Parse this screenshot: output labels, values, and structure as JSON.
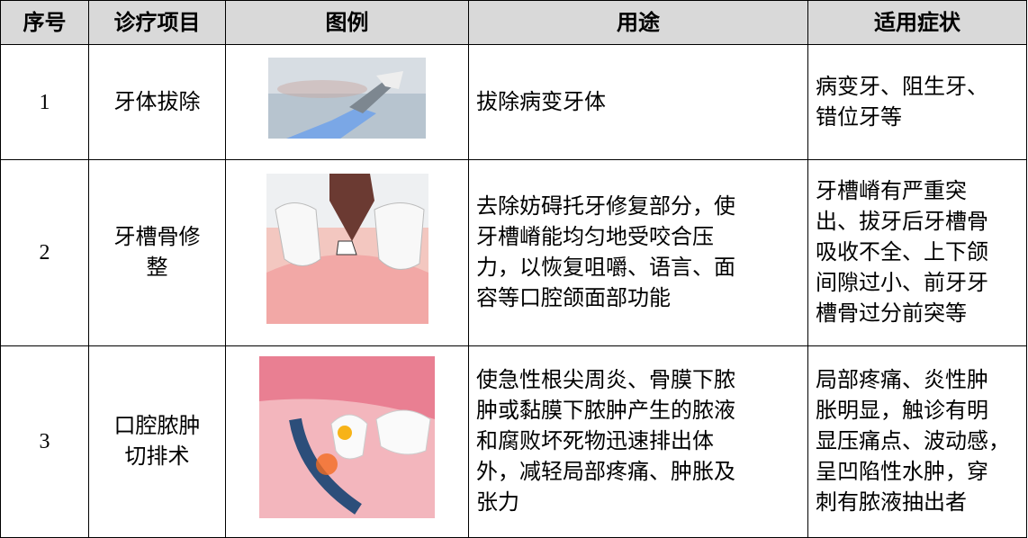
{
  "table": {
    "header": [
      "序号",
      "诊疗项目",
      "图例",
      "用途",
      "适用症状"
    ],
    "rows": [
      {
        "no": "1",
        "item": [
          "牙体拔除"
        ],
        "use": [
          "拔除病变牙体"
        ],
        "symptoms": [
          "病变牙、阻生牙、",
          "错位牙等"
        ]
      },
      {
        "no": "2",
        "item": [
          "牙槽骨修",
          "整"
        ],
        "use": [
          "去除妨碍托牙修复部分，使",
          "牙槽嵴能均匀地受咬合压",
          "力，以恢复咀嚼、语言、面",
          "容等口腔颌面部功能"
        ],
        "symptoms": [
          "牙槽嵴有严重突",
          "出、拔牙后牙槽骨",
          "吸收不全、上下颌",
          "间隙过小、前牙牙",
          "槽骨过分前突等"
        ]
      },
      {
        "no": "3",
        "item": [
          "口腔脓肿",
          "切排术"
        ],
        "use": [
          "使急性根尖周炎、骨膜下脓",
          "肿或黏膜下脓肿产生的脓液",
          "和腐败坏死物迅速排出体",
          "外，减轻局部疼痛、肿胀及",
          "张力"
        ],
        "symptoms": [
          "局部疼痛、炎性肿",
          "胀明显，触诊有明",
          "显压痛点、波动感，",
          "呈凹陷性水肿，穿",
          "刺有脓液抽出者"
        ]
      }
    ]
  }
}
